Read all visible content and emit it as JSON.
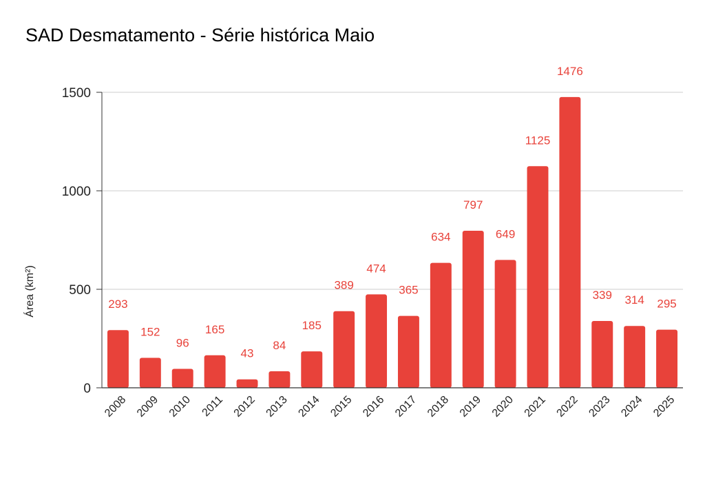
{
  "chart_data": {
    "type": "bar",
    "title": "SAD Desmatamento - Série histórica Maio",
    "xlabel": "",
    "ylabel": "Área (km²)",
    "ylim": [
      0,
      1500
    ],
    "yticks": [
      0,
      500,
      1000,
      1500
    ],
    "grid": true,
    "legend": "none",
    "categories": [
      "2008",
      "2009",
      "2010",
      "2011",
      "2012",
      "2013",
      "2014",
      "2015",
      "2016",
      "2017",
      "2018",
      "2019",
      "2020",
      "2021",
      "2022",
      "2023",
      "2024",
      "2025"
    ],
    "values": [
      293,
      152,
      96,
      165,
      43,
      84,
      185,
      389,
      474,
      365,
      634,
      797,
      649,
      1125,
      1476,
      339,
      314,
      295
    ],
    "colors": {
      "bar": "#e8423a",
      "label": "#e8423a",
      "grid": "#cccccc",
      "axis": "#333333",
      "text": "#222222"
    }
  }
}
